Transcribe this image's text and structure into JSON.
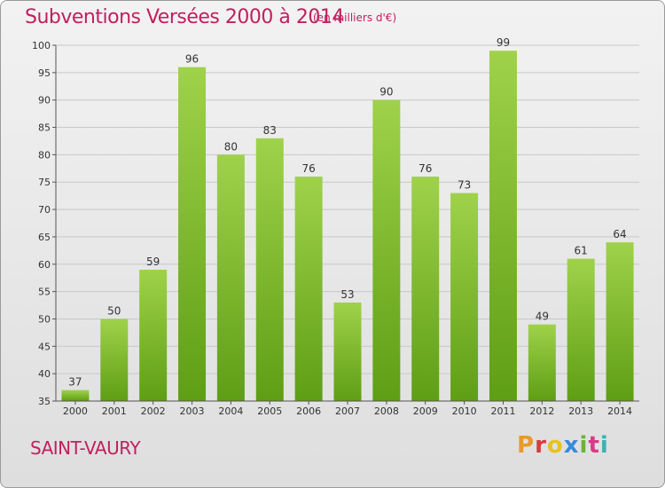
{
  "header": {
    "title": "Subventions Versées 2000 à 2014",
    "subtitle": "(en milliers d'€)"
  },
  "footer": {
    "city": "SAINT-VAURY",
    "logo_text": "Proxiti",
    "logo_colors": [
      "#e89a2a",
      "#d83a3a",
      "#e8c21e",
      "#3a8ad8",
      "#6ab33a",
      "#d83a8a",
      "#3ab3b3"
    ]
  },
  "colors": {
    "title": "#c02060",
    "bar_light": "#9fd24a",
    "bar_dark": "#5e9e15",
    "grid": "#c8c8c8",
    "axis": "#555555"
  },
  "chart_data": {
    "type": "bar",
    "categories": [
      "2000",
      "2001",
      "2002",
      "2003",
      "2004",
      "2005",
      "2006",
      "2007",
      "2008",
      "2009",
      "2010",
      "2011",
      "2012",
      "2013",
      "2014"
    ],
    "values": [
      37,
      50,
      59,
      96,
      80,
      83,
      76,
      53,
      90,
      76,
      73,
      99,
      49,
      61,
      64
    ],
    "title": "Subventions Versées 2000 à 2014",
    "subtitle": "(en milliers d'€)",
    "ylim": [
      35,
      100
    ],
    "yticks": [
      35,
      40,
      45,
      50,
      55,
      60,
      65,
      70,
      75,
      80,
      85,
      90,
      95,
      100
    ],
    "grid": true,
    "data_labels": true
  }
}
